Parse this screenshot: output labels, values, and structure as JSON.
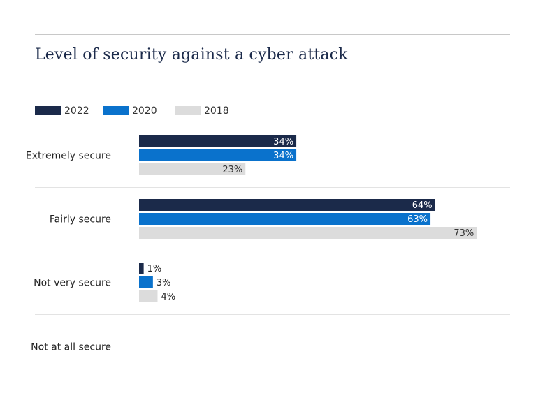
{
  "title": "Level of security against a cyber attack",
  "chart_data": {
    "type": "bar",
    "orientation": "horizontal",
    "title": "Level of security against a cyber attack",
    "categories": [
      "Extremely secure",
      "Fairly secure",
      "Not very secure",
      "Not at all secure"
    ],
    "series": [
      {
        "name": "2022",
        "color": "#1b2a4a",
        "values": [
          34,
          64,
          1,
          null
        ],
        "labels": [
          "34%",
          "64%",
          "1%",
          ""
        ]
      },
      {
        "name": "2020",
        "color": "#0a72cc",
        "values": [
          34,
          63,
          3,
          null
        ],
        "labels": [
          "34%",
          "63%",
          "3%",
          ""
        ]
      },
      {
        "name": "2018",
        "color": "#dcdcdc",
        "values": [
          23,
          73,
          4,
          null
        ],
        "labels": [
          "23%",
          "73%",
          "4%",
          ""
        ]
      }
    ],
    "value_unit": "%",
    "xlim": [
      0,
      100
    ],
    "legend_position": "top-left",
    "grid": false
  }
}
